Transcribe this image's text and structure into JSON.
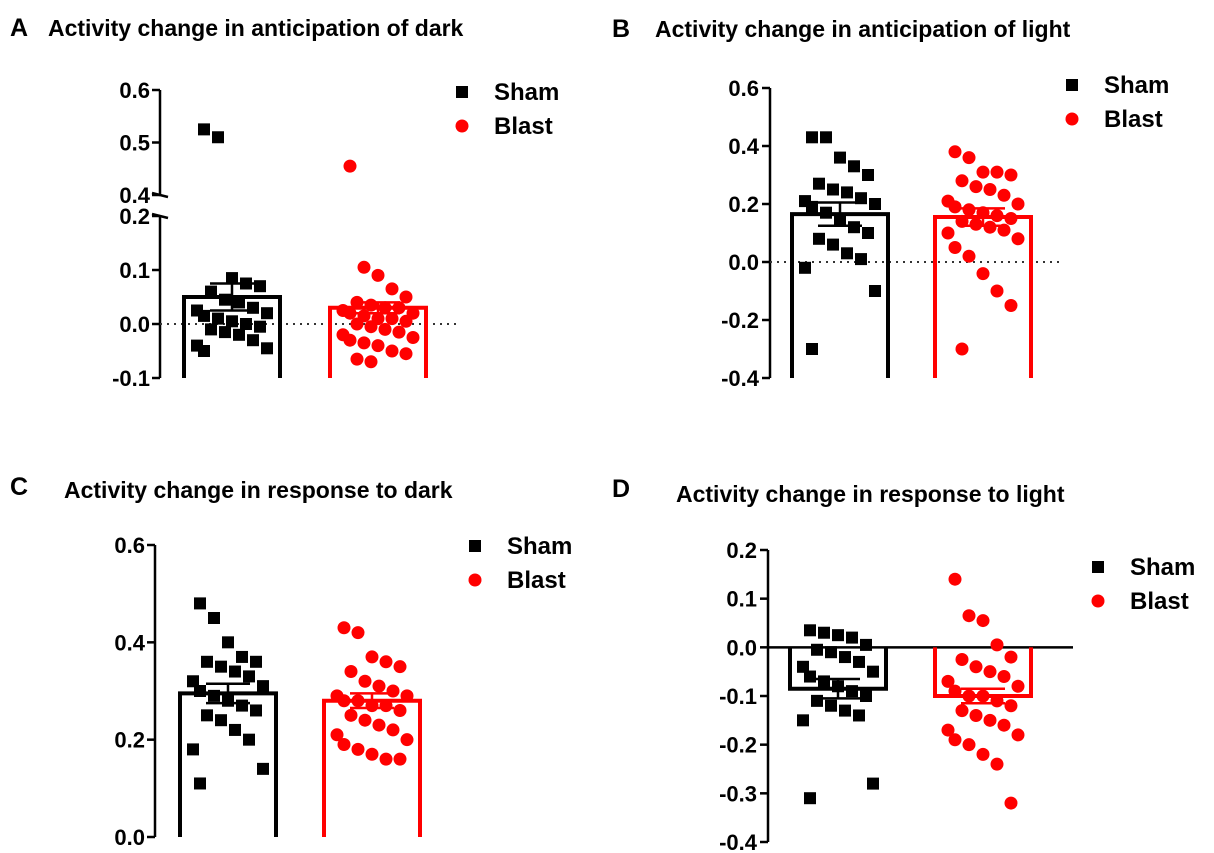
{
  "chart_data": [
    {
      "id": "A",
      "type": "bar",
      "letter": "A",
      "title": "Activity change in anticipation of dark",
      "axis_break": {
        "lower": [
          -0.1,
          0.2
        ],
        "upper": [
          0.4,
          0.6
        ]
      },
      "ylim": [
        -0.1,
        0.6
      ],
      "yticks": [
        -0.1,
        0.0,
        0.1,
        0.2,
        0.4,
        0.5,
        0.6
      ],
      "ytick_labels": [
        "-0.1",
        "0.0",
        "0.1",
        "0.2",
        "0.4",
        "0.5",
        "0.6"
      ],
      "zero_line": "dotted",
      "legend": {
        "placement": "top-right",
        "entries": [
          "Sham",
          "Blast"
        ]
      },
      "series": [
        {
          "name": "Sham",
          "mean": 0.05,
          "sem": 0.025,
          "color": "#000000",
          "marker": "square",
          "points": [
            0.525,
            0.51,
            0.085,
            0.075,
            0.07,
            0.06,
            0.045,
            0.04,
            0.03,
            0.025,
            0.02,
            0.015,
            0.01,
            0.005,
            0.0,
            -0.005,
            -0.01,
            -0.015,
            -0.02,
            -0.03,
            -0.04,
            -0.045,
            -0.05
          ]
        },
        {
          "name": "Blast",
          "mean": 0.03,
          "sem": 0.01,
          "color": "#ff0000",
          "marker": "circle",
          "points": [
            0.455,
            0.105,
            0.09,
            0.065,
            0.05,
            0.04,
            0.035,
            0.03,
            0.03,
            0.025,
            0.02,
            0.02,
            0.015,
            0.01,
            0.01,
            0.005,
            0.0,
            -0.005,
            -0.01,
            -0.015,
            -0.02,
            -0.025,
            -0.03,
            -0.035,
            -0.04,
            -0.05,
            -0.055,
            -0.065,
            -0.07
          ]
        }
      ]
    },
    {
      "id": "B",
      "type": "bar",
      "letter": "B",
      "title": "Activity change in anticipation of light",
      "ylim": [
        -0.4,
        0.6
      ],
      "yticks": [
        -0.4,
        -0.2,
        0.0,
        0.2,
        0.4,
        0.6
      ],
      "ytick_labels": [
        "-0.4",
        "-0.2",
        "0.0",
        "0.2",
        "0.4",
        "0.6"
      ],
      "zero_line": "dotted",
      "legend": {
        "placement": "top-right",
        "entries": [
          "Sham",
          "Blast"
        ]
      },
      "series": [
        {
          "name": "Sham",
          "mean": 0.165,
          "sem": 0.04,
          "color": "#000000",
          "marker": "square",
          "points": [
            0.43,
            0.43,
            0.36,
            0.33,
            0.3,
            0.27,
            0.25,
            0.24,
            0.22,
            0.21,
            0.2,
            0.19,
            0.17,
            0.15,
            0.12,
            0.1,
            0.08,
            0.06,
            0.03,
            0.01,
            -0.02,
            -0.1,
            -0.3
          ]
        },
        {
          "name": "Blast",
          "mean": 0.155,
          "sem": 0.03,
          "color": "#ff0000",
          "marker": "circle",
          "points": [
            0.38,
            0.36,
            0.31,
            0.31,
            0.3,
            0.28,
            0.26,
            0.25,
            0.23,
            0.21,
            0.2,
            0.19,
            0.18,
            0.17,
            0.16,
            0.15,
            0.14,
            0.13,
            0.12,
            0.11,
            0.1,
            0.08,
            0.05,
            0.02,
            -0.04,
            -0.1,
            -0.15,
            -0.3
          ]
        }
      ]
    },
    {
      "id": "C",
      "type": "bar",
      "letter": "C",
      "title": "Activity change in response to dark",
      "ylim": [
        0.0,
        0.6
      ],
      "yticks": [
        0.0,
        0.2,
        0.4,
        0.6
      ],
      "ytick_labels": [
        "0.0",
        "0.2",
        "0.4",
        "0.6"
      ],
      "zero_line": "none",
      "legend": {
        "placement": "top-right",
        "entries": [
          "Sham",
          "Blast"
        ]
      },
      "series": [
        {
          "name": "Sham",
          "mean": 0.295,
          "sem": 0.02,
          "color": "#000000",
          "marker": "square",
          "points": [
            0.48,
            0.45,
            0.4,
            0.37,
            0.36,
            0.36,
            0.35,
            0.34,
            0.33,
            0.32,
            0.31,
            0.3,
            0.29,
            0.28,
            0.27,
            0.26,
            0.25,
            0.24,
            0.22,
            0.2,
            0.18,
            0.14,
            0.11
          ]
        },
        {
          "name": "Blast",
          "mean": 0.28,
          "sem": 0.015,
          "color": "#ff0000",
          "marker": "circle",
          "points": [
            0.43,
            0.42,
            0.37,
            0.36,
            0.35,
            0.34,
            0.32,
            0.31,
            0.3,
            0.29,
            0.29,
            0.28,
            0.28,
            0.27,
            0.27,
            0.26,
            0.25,
            0.24,
            0.23,
            0.22,
            0.21,
            0.2,
            0.19,
            0.18,
            0.17,
            0.16,
            0.16
          ]
        }
      ]
    },
    {
      "id": "D",
      "type": "bar",
      "letter": "D",
      "title": "Activity change in response to light",
      "ylim": [
        -0.4,
        0.2
      ],
      "yticks": [
        -0.4,
        -0.3,
        -0.2,
        -0.1,
        0.0,
        0.1,
        0.2
      ],
      "ytick_labels": [
        "-0.4",
        "-0.3",
        "-0.2",
        "-0.1",
        "0.0",
        "0.1",
        "0.2"
      ],
      "zero_line": "solid",
      "legend": {
        "placement": "top-right",
        "entries": [
          "Sham",
          "Blast"
        ]
      },
      "series": [
        {
          "name": "Sham",
          "mean": -0.085,
          "sem": 0.02,
          "color": "#000000",
          "marker": "square",
          "points": [
            0.035,
            0.03,
            0.025,
            0.02,
            0.005,
            -0.005,
            -0.01,
            -0.02,
            -0.03,
            -0.04,
            -0.05,
            -0.06,
            -0.07,
            -0.08,
            -0.09,
            -0.1,
            -0.11,
            -0.12,
            -0.13,
            -0.14,
            -0.15,
            -0.28,
            -0.31
          ]
        },
        {
          "name": "Blast",
          "mean": -0.1,
          "sem": 0.015,
          "color": "#ff0000",
          "marker": "circle",
          "points": [
            0.14,
            0.065,
            0.055,
            0.005,
            -0.02,
            -0.025,
            -0.04,
            -0.05,
            -0.06,
            -0.07,
            -0.08,
            -0.09,
            -0.1,
            -0.1,
            -0.11,
            -0.12,
            -0.13,
            -0.14,
            -0.15,
            -0.16,
            -0.17,
            -0.18,
            -0.19,
            -0.2,
            -0.22,
            -0.24,
            -0.32
          ]
        }
      ]
    }
  ]
}
